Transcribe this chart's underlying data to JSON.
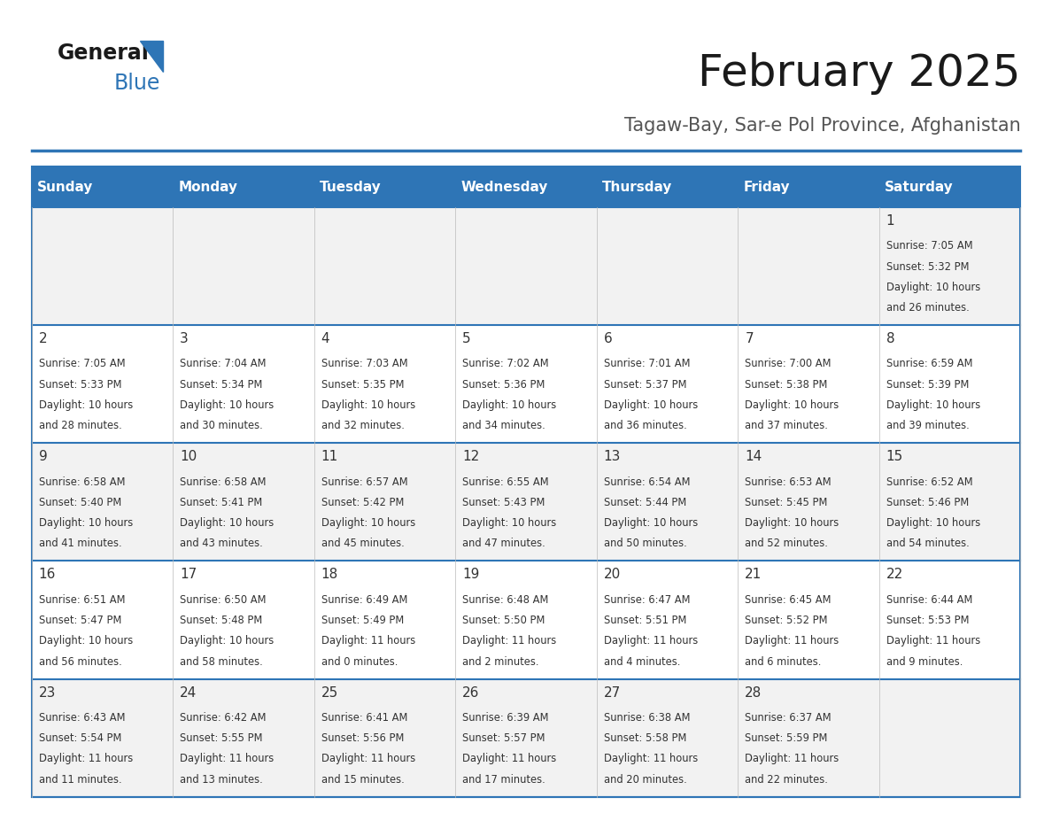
{
  "title": "February 2025",
  "subtitle": "Tagaw-Bay, Sar-e Pol Province, Afghanistan",
  "header_bg": "#2E75B6",
  "header_text": "#FFFFFF",
  "cell_bg_light": "#F2F2F2",
  "cell_bg_white": "#FFFFFF",
  "border_color": "#2E75B6",
  "text_color": "#333333",
  "days_of_week": [
    "Sunday",
    "Monday",
    "Tuesday",
    "Wednesday",
    "Thursday",
    "Friday",
    "Saturday"
  ],
  "weeks": [
    [
      {
        "day": null,
        "sunrise": null,
        "sunset": null,
        "daylight": null
      },
      {
        "day": null,
        "sunrise": null,
        "sunset": null,
        "daylight": null
      },
      {
        "day": null,
        "sunrise": null,
        "sunset": null,
        "daylight": null
      },
      {
        "day": null,
        "sunrise": null,
        "sunset": null,
        "daylight": null
      },
      {
        "day": null,
        "sunrise": null,
        "sunset": null,
        "daylight": null
      },
      {
        "day": null,
        "sunrise": null,
        "sunset": null,
        "daylight": null
      },
      {
        "day": 1,
        "sunrise": "7:05 AM",
        "sunset": "5:32 PM",
        "daylight": "10 hours and 26 minutes."
      }
    ],
    [
      {
        "day": 2,
        "sunrise": "7:05 AM",
        "sunset": "5:33 PM",
        "daylight": "10 hours and 28 minutes."
      },
      {
        "day": 3,
        "sunrise": "7:04 AM",
        "sunset": "5:34 PM",
        "daylight": "10 hours and 30 minutes."
      },
      {
        "day": 4,
        "sunrise": "7:03 AM",
        "sunset": "5:35 PM",
        "daylight": "10 hours and 32 minutes."
      },
      {
        "day": 5,
        "sunrise": "7:02 AM",
        "sunset": "5:36 PM",
        "daylight": "10 hours and 34 minutes."
      },
      {
        "day": 6,
        "sunrise": "7:01 AM",
        "sunset": "5:37 PM",
        "daylight": "10 hours and 36 minutes."
      },
      {
        "day": 7,
        "sunrise": "7:00 AM",
        "sunset": "5:38 PM",
        "daylight": "10 hours and 37 minutes."
      },
      {
        "day": 8,
        "sunrise": "6:59 AM",
        "sunset": "5:39 PM",
        "daylight": "10 hours and 39 minutes."
      }
    ],
    [
      {
        "day": 9,
        "sunrise": "6:58 AM",
        "sunset": "5:40 PM",
        "daylight": "10 hours and 41 minutes."
      },
      {
        "day": 10,
        "sunrise": "6:58 AM",
        "sunset": "5:41 PM",
        "daylight": "10 hours and 43 minutes."
      },
      {
        "day": 11,
        "sunrise": "6:57 AM",
        "sunset": "5:42 PM",
        "daylight": "10 hours and 45 minutes."
      },
      {
        "day": 12,
        "sunrise": "6:55 AM",
        "sunset": "5:43 PM",
        "daylight": "10 hours and 47 minutes."
      },
      {
        "day": 13,
        "sunrise": "6:54 AM",
        "sunset": "5:44 PM",
        "daylight": "10 hours and 50 minutes."
      },
      {
        "day": 14,
        "sunrise": "6:53 AM",
        "sunset": "5:45 PM",
        "daylight": "10 hours and 52 minutes."
      },
      {
        "day": 15,
        "sunrise": "6:52 AM",
        "sunset": "5:46 PM",
        "daylight": "10 hours and 54 minutes."
      }
    ],
    [
      {
        "day": 16,
        "sunrise": "6:51 AM",
        "sunset": "5:47 PM",
        "daylight": "10 hours and 56 minutes."
      },
      {
        "day": 17,
        "sunrise": "6:50 AM",
        "sunset": "5:48 PM",
        "daylight": "10 hours and 58 minutes."
      },
      {
        "day": 18,
        "sunrise": "6:49 AM",
        "sunset": "5:49 PM",
        "daylight": "11 hours and 0 minutes."
      },
      {
        "day": 19,
        "sunrise": "6:48 AM",
        "sunset": "5:50 PM",
        "daylight": "11 hours and 2 minutes."
      },
      {
        "day": 20,
        "sunrise": "6:47 AM",
        "sunset": "5:51 PM",
        "daylight": "11 hours and 4 minutes."
      },
      {
        "day": 21,
        "sunrise": "6:45 AM",
        "sunset": "5:52 PM",
        "daylight": "11 hours and 6 minutes."
      },
      {
        "day": 22,
        "sunrise": "6:44 AM",
        "sunset": "5:53 PM",
        "daylight": "11 hours and 9 minutes."
      }
    ],
    [
      {
        "day": 23,
        "sunrise": "6:43 AM",
        "sunset": "5:54 PM",
        "daylight": "11 hours and 11 minutes."
      },
      {
        "day": 24,
        "sunrise": "6:42 AM",
        "sunset": "5:55 PM",
        "daylight": "11 hours and 13 minutes."
      },
      {
        "day": 25,
        "sunrise": "6:41 AM",
        "sunset": "5:56 PM",
        "daylight": "11 hours and 15 minutes."
      },
      {
        "day": 26,
        "sunrise": "6:39 AM",
        "sunset": "5:57 PM",
        "daylight": "11 hours and 17 minutes."
      },
      {
        "day": 27,
        "sunrise": "6:38 AM",
        "sunset": "5:58 PM",
        "daylight": "11 hours and 20 minutes."
      },
      {
        "day": 28,
        "sunrise": "6:37 AM",
        "sunset": "5:59 PM",
        "daylight": "11 hours and 22 minutes."
      },
      {
        "day": null,
        "sunrise": null,
        "sunset": null,
        "daylight": null
      }
    ]
  ]
}
